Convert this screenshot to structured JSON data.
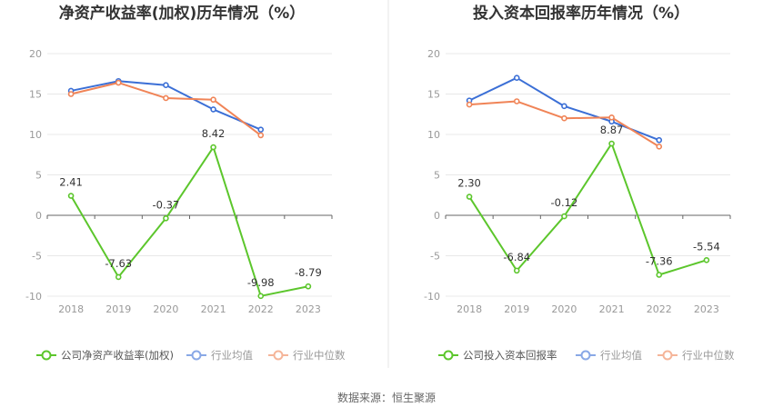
{
  "colors": {
    "company": "#5cc62c",
    "industry_avg": "#3b6fd6",
    "industry_median": "#f08457",
    "axis": "#666666",
    "grid": "#e8e8e8",
    "divider": "#e6e6e6"
  },
  "source": "数据来源：恒生聚源",
  "chart_data": [
    {
      "type": "line",
      "title": "净资产收益率(加权)历年情况（%）",
      "categories": [
        "2018",
        "2019",
        "2020",
        "2021",
        "2022",
        "2023"
      ],
      "ylim": [
        -10,
        20
      ],
      "yticks": [
        "20",
        "15",
        "10",
        "5",
        "0",
        "-5",
        "-10"
      ],
      "series": [
        {
          "name": "公司净资产收益率(加权)",
          "role": "company",
          "values": [
            2.41,
            -7.63,
            -0.37,
            8.42,
            -9.98,
            -8.79
          ],
          "labels": [
            "2.41",
            "-7.63",
            "-0.37",
            "8.42",
            "-9.98",
            "-8.79"
          ]
        },
        {
          "name": "行业均值",
          "role": "industry_avg",
          "values": [
            15.4,
            16.6,
            16.1,
            13.1,
            10.6,
            null
          ]
        },
        {
          "name": "行业中位数",
          "role": "industry_median",
          "values": [
            15.0,
            16.4,
            14.5,
            14.3,
            9.9,
            null
          ]
        }
      ]
    },
    {
      "type": "line",
      "title": "投入资本回报率历年情况（%）",
      "categories": [
        "2018",
        "2019",
        "2020",
        "2021",
        "2022",
        "2023"
      ],
      "ylim": [
        -10,
        20
      ],
      "yticks": [
        "20",
        "15",
        "10",
        "5",
        "0",
        "-5",
        "-10"
      ],
      "series": [
        {
          "name": "公司投入资本回报率",
          "role": "company",
          "values": [
            2.3,
            -6.84,
            -0.12,
            8.87,
            -7.36,
            -5.54
          ],
          "labels": [
            "2.30",
            "-6.84",
            "-0.12",
            "8.87",
            "-7.36",
            "-5.54"
          ]
        },
        {
          "name": "行业均值",
          "role": "industry_avg",
          "values": [
            14.2,
            17.0,
            13.5,
            11.6,
            9.3,
            null
          ]
        },
        {
          "name": "行业中位数",
          "role": "industry_median",
          "values": [
            13.7,
            14.1,
            12.0,
            12.1,
            8.5,
            null
          ]
        }
      ]
    }
  ]
}
